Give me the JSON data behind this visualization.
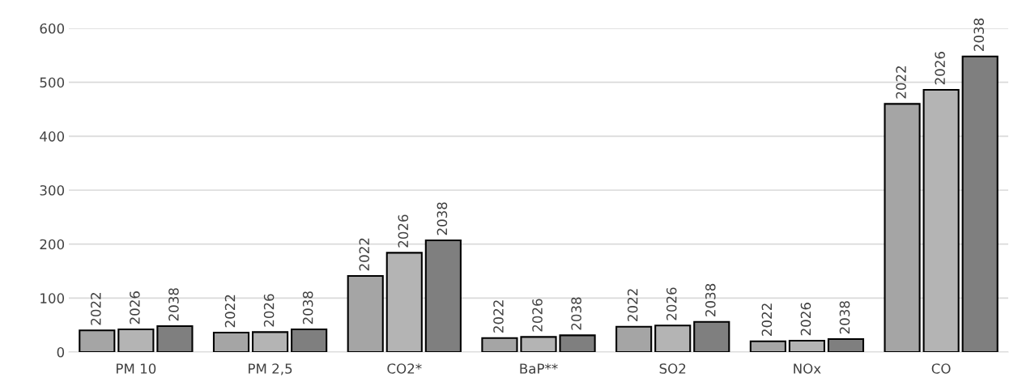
{
  "chart_data": {
    "type": "bar",
    "categories": [
      "PM 10",
      "PM 2,5",
      "CO2*",
      "BaP**",
      "SO2",
      "NOx",
      "CO"
    ],
    "series": [
      {
        "name": "2022",
        "color": "#a5a5a5",
        "values": [
          40,
          36,
          141,
          26,
          47,
          20,
          460
        ]
      },
      {
        "name": "2026",
        "color": "#b4b4b4",
        "values": [
          42,
          37,
          184,
          28,
          49,
          21,
          486
        ]
      },
      {
        "name": "2038",
        "color": "#7f7f7f",
        "values": [
          48,
          42,
          207,
          31,
          56,
          24,
          548
        ]
      }
    ],
    "ylim": [
      0,
      600
    ],
    "yticks": [
      0,
      100,
      200,
      300,
      400,
      500,
      600
    ],
    "grid": "y",
    "legend": false
  }
}
